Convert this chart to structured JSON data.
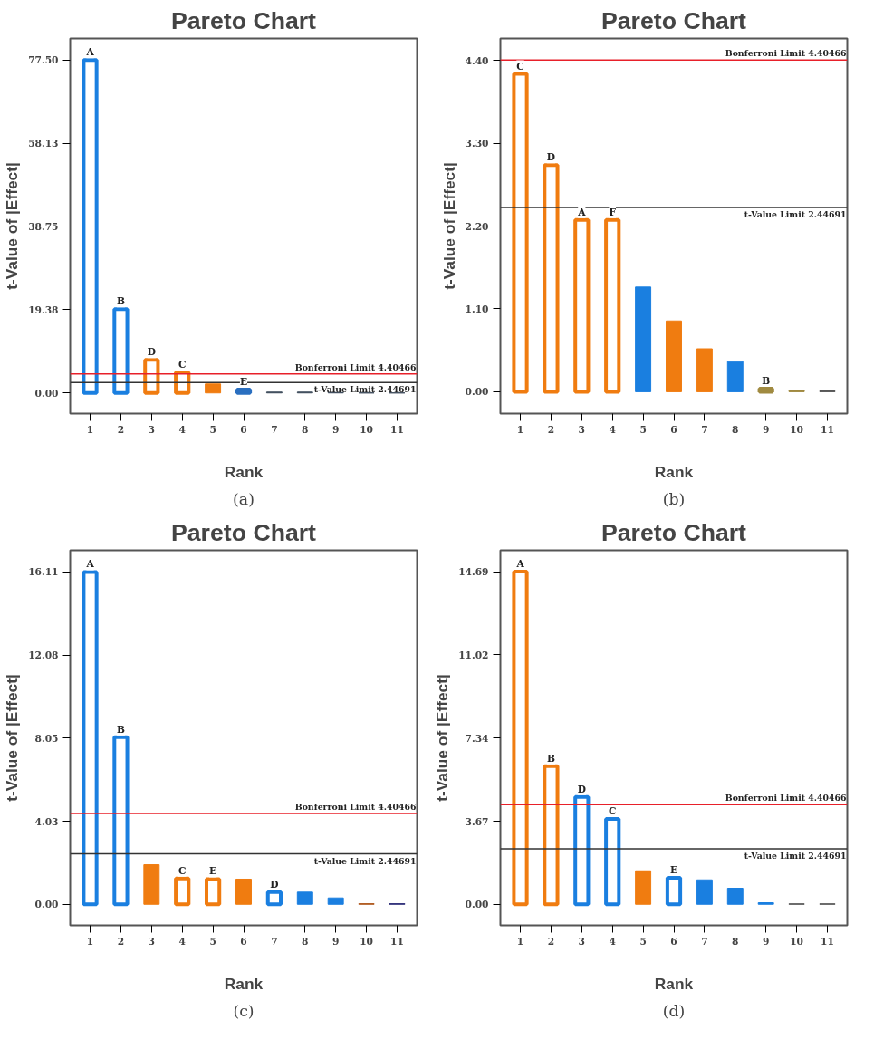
{
  "chart_data": [
    {
      "type": "bar",
      "title": "Pareto Chart",
      "xlabel": "Rank",
      "ylabel": "t-Value of |Effect|",
      "categories": [
        "1",
        "2",
        "3",
        "4",
        "5",
        "6",
        "7",
        "8",
        "9",
        "10",
        "11"
      ],
      "values": [
        77.5,
        19.5,
        7.7,
        4.8,
        2.1,
        0.8,
        0.2,
        0.2,
        0.1,
        0,
        0
      ],
      "colors": [
        "#1a7fe0",
        "#1a7fe0",
        "#f07c10",
        "#f07c10",
        "#f07c10",
        "#2a6fc0",
        "#3c4a5a",
        "#3c4a5a",
        "#3c4a5a",
        "#3c4a5a",
        "#3c4a5a"
      ],
      "value_labels": [
        "A",
        "B",
        "D",
        "C",
        null,
        "E",
        null,
        null,
        null,
        null,
        null
      ],
      "ylim": [
        -4.8,
        82.5
      ],
      "yticks": [
        {
          "value": 0,
          "label": "0.00"
        },
        {
          "value": 19.38,
          "label": "19.38"
        },
        {
          "value": 38.75,
          "label": "38.75"
        },
        {
          "value": 58.13,
          "label": "58.13"
        },
        {
          "value": 77.5,
          "label": "77.50"
        }
      ],
      "ref_lines": [
        {
          "axis": "y",
          "value": 4.40466,
          "label": "Bonferroni Limit 4.40466",
          "color": "#e8202a"
        },
        {
          "axis": "y",
          "value": 2.44691,
          "label": "t-Value Limit 2.44691",
          "color": "#333333"
        }
      ],
      "annotations": [
        "(a)"
      ]
    },
    {
      "type": "bar",
      "title": "Pareto Chart",
      "xlabel": "Rank",
      "ylabel": "t-Value of |Effect|",
      "categories": [
        "1",
        "2",
        "3",
        "4",
        "5",
        "6",
        "7",
        "8",
        "9",
        "10",
        "11"
      ],
      "values": [
        4.22,
        3.01,
        2.28,
        2.28,
        1.39,
        0.94,
        0.57,
        0.4,
        0.04,
        0.02,
        0.01
      ],
      "colors": [
        "#f07c10",
        "#f07c10",
        "#f07c10",
        "#f07c10",
        "#1a7fe0",
        "#f07c10",
        "#f07c10",
        "#1a7fe0",
        "#a08a40",
        "#a08a40",
        "#555555"
      ],
      "value_labels": [
        "C",
        "D",
        "A",
        "F",
        null,
        null,
        null,
        null,
        "B",
        null,
        null
      ],
      "ylim": [
        -0.29,
        4.69
      ],
      "yticks": [
        {
          "value": 0,
          "label": "0.00"
        },
        {
          "value": 1.1,
          "label": "1.10"
        },
        {
          "value": 2.2,
          "label": "2.20"
        },
        {
          "value": 3.3,
          "label": "3.30"
        },
        {
          "value": 4.4,
          "label": "4.40"
        }
      ],
      "ref_lines": [
        {
          "axis": "y",
          "value": 4.40466,
          "label": "Bonferroni Limit 4.40466",
          "color": "#e8202a"
        },
        {
          "axis": "y",
          "value": 2.44691,
          "label": "t-Value Limit 2.44691",
          "color": "#333333"
        }
      ],
      "annotations": [
        "(b)"
      ]
    },
    {
      "type": "bar",
      "title": "Pareto Chart",
      "xlabel": "Rank",
      "ylabel": "t-Value of |Effect|",
      "categories": [
        "1",
        "2",
        "3",
        "4",
        "5",
        "6",
        "7",
        "8",
        "9",
        "10",
        "11"
      ],
      "values": [
        16.11,
        8.1,
        1.92,
        1.25,
        1.22,
        1.22,
        0.59,
        0.59,
        0.31,
        0.03,
        0.03
      ],
      "colors": [
        "#1a7fe0",
        "#1a7fe0",
        "#f07c10",
        "#f07c10",
        "#f07c10",
        "#f07c10",
        "#1a7fe0",
        "#1a7fe0",
        "#1a7fe0",
        "#b05a20",
        "#30307a"
      ],
      "value_labels": [
        "A",
        "B",
        null,
        "C",
        "E",
        null,
        "D",
        null,
        null,
        null,
        null
      ],
      "ylim": [
        -1.02,
        17.16
      ],
      "yticks": [
        {
          "value": 0,
          "label": "0.00"
        },
        {
          "value": 4.03,
          "label": "4.03"
        },
        {
          "value": 8.05,
          "label": "8.05"
        },
        {
          "value": 12.08,
          "label": "12.08"
        },
        {
          "value": 16.11,
          "label": "16.11"
        }
      ],
      "ref_lines": [
        {
          "axis": "y",
          "value": 4.40466,
          "label": "Bonferroni Limit 4.40466",
          "color": "#e8202a"
        },
        {
          "axis": "y",
          "value": 2.44691,
          "label": "t-Value Limit 2.44691",
          "color": "#333333"
        }
      ],
      "annotations": [
        "(c)"
      ]
    },
    {
      "type": "bar",
      "title": "Pareto Chart",
      "xlabel": "Rank",
      "ylabel": "t-Value of |Effect|",
      "categories": [
        "1",
        "2",
        "3",
        "4",
        "5",
        "6",
        "7",
        "8",
        "9",
        "10",
        "11"
      ],
      "values": [
        14.69,
        6.1,
        4.74,
        3.77,
        1.48,
        1.17,
        1.08,
        0.71,
        0.07,
        0.02,
        0.02
      ],
      "colors": [
        "#f07c10",
        "#f07c10",
        "#1a7fe0",
        "#1a7fe0",
        "#f07c10",
        "#1a7fe0",
        "#1a7fe0",
        "#1a7fe0",
        "#1a7fe0",
        "#555555",
        "#555555"
      ],
      "value_labels": [
        "A",
        "B",
        "D",
        "C",
        null,
        "E",
        null,
        null,
        null,
        null,
        null
      ],
      "ylim": [
        -0.93,
        15.63
      ],
      "yticks": [
        {
          "value": 0,
          "label": "0.00"
        },
        {
          "value": 3.67,
          "label": "3.67"
        },
        {
          "value": 7.34,
          "label": "7.34"
        },
        {
          "value": 11.02,
          "label": "11.02"
        },
        {
          "value": 14.69,
          "label": "14.69"
        }
      ],
      "ref_lines": [
        {
          "axis": "y",
          "value": 4.40466,
          "label": "Bonferroni Limit 4.40466",
          "color": "#e8202a"
        },
        {
          "axis": "y",
          "value": 2.44691,
          "label": "t-Value Limit 2.44691",
          "color": "#333333"
        }
      ],
      "annotations": [
        "(d)"
      ]
    }
  ]
}
